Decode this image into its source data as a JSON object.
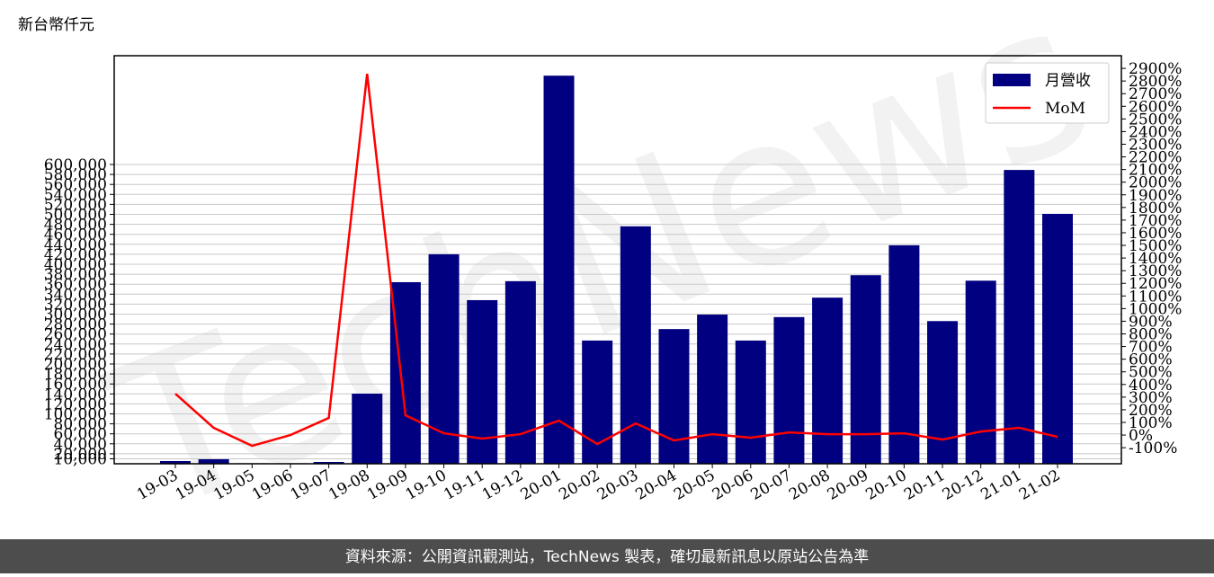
{
  "chart_data": {
    "type": "bar-line",
    "unit_label": "新台幣仟元",
    "watermark": "TechNews",
    "footer": "資料來源：公開資訊觀測站，TechNews 製表，確切最新訊息以原站公告為準",
    "categories": [
      "19-03",
      "19-04",
      "19-05",
      "19-06",
      "19-07",
      "19-08",
      "19-09",
      "19-10",
      "19-11",
      "19-12",
      "20-01",
      "20-02",
      "20-03",
      "20-04",
      "20-05",
      "20-06",
      "20-07",
      "20-08",
      "20-09",
      "20-10",
      "20-11",
      "20-12",
      "21-01",
      "21-02"
    ],
    "series": [
      {
        "name": "月營收",
        "type": "bar",
        "color": "#000080",
        "values": [
          5400,
          9000,
          1000,
          1000,
          3600,
          140500,
          364000,
          420000,
          328000,
          366000,
          778000,
          247000,
          476000,
          270000,
          299000,
          247000,
          294000,
          333000,
          378000,
          438000,
          286000,
          367000,
          589000,
          501000
        ]
      },
      {
        "name": "MoM",
        "type": "line",
        "axis": "y2",
        "color": "#ff0000",
        "values": [
          327,
          57,
          -85,
          0,
          135,
          2857,
          156,
          14,
          -28,
          7,
          114,
          -71,
          92,
          -43,
          7,
          -21,
          21,
          7,
          7,
          14,
          -36,
          28,
          57,
          -14
        ]
      }
    ],
    "ylim": [
      0,
      818000
    ],
    "yticks": [
      {
        "value": 10000,
        "label": "10,000"
      },
      {
        "value": 20000,
        "label": "20,000"
      },
      {
        "value": 40000,
        "label": "40,000"
      },
      {
        "value": 60000,
        "label": "60,000"
      },
      {
        "value": 80000,
        "label": "80,000"
      },
      {
        "value": 100000,
        "label": "100,000"
      },
      {
        "value": 120000,
        "label": "120,000"
      },
      {
        "value": 140000,
        "label": "140,000"
      },
      {
        "value": 160000,
        "label": "160,000"
      },
      {
        "value": 180000,
        "label": "180,000"
      },
      {
        "value": 200000,
        "label": "200,000"
      },
      {
        "value": 220000,
        "label": "220,000"
      },
      {
        "value": 240000,
        "label": "240,000"
      },
      {
        "value": 260000,
        "label": "260,000"
      },
      {
        "value": 280000,
        "label": "280,000"
      },
      {
        "value": 300000,
        "label": "300,000"
      },
      {
        "value": 320000,
        "label": "320,000"
      },
      {
        "value": 340000,
        "label": "340,000"
      },
      {
        "value": 360000,
        "label": "360,000"
      },
      {
        "value": 380000,
        "label": "380,000"
      },
      {
        "value": 400000,
        "label": "400,000"
      },
      {
        "value": 420000,
        "label": "420,000"
      },
      {
        "value": 440000,
        "label": "440,000"
      },
      {
        "value": 460000,
        "label": "460,000"
      },
      {
        "value": 480000,
        "label": "480,000"
      },
      {
        "value": 500000,
        "label": "500,000"
      },
      {
        "value": 520000,
        "label": "520,000"
      },
      {
        "value": 540000,
        "label": "540,000"
      },
      {
        "value": 560000,
        "label": "560,000"
      },
      {
        "value": 580000,
        "label": "580,000"
      },
      {
        "value": 600000,
        "label": "600,000"
      }
    ],
    "y2lim": [
      -227,
      3000
    ],
    "y2ticks": [
      {
        "value": -100,
        "label": "-100%"
      },
      {
        "value": 0,
        "label": "0%"
      },
      {
        "value": 100,
        "label": "100%"
      },
      {
        "value": 200,
        "label": "200%"
      },
      {
        "value": 300,
        "label": "300%"
      },
      {
        "value": 400,
        "label": "400%"
      },
      {
        "value": 500,
        "label": "500%"
      },
      {
        "value": 600,
        "label": "600%"
      },
      {
        "value": 700,
        "label": "700%"
      },
      {
        "value": 800,
        "label": "800%"
      },
      {
        "value": 900,
        "label": "900%"
      },
      {
        "value": 1000,
        "label": "1000%"
      },
      {
        "value": 1100,
        "label": "1100%"
      },
      {
        "value": 1200,
        "label": "1200%"
      },
      {
        "value": 1300,
        "label": "1300%"
      },
      {
        "value": 1400,
        "label": "1400%"
      },
      {
        "value": 1500,
        "label": "1500%"
      },
      {
        "value": 1600,
        "label": "1600%"
      },
      {
        "value": 1700,
        "label": "1700%"
      },
      {
        "value": 1800,
        "label": "1800%"
      },
      {
        "value": 1900,
        "label": "1900%"
      },
      {
        "value": 2000,
        "label": "2000%"
      },
      {
        "value": 2100,
        "label": "2100%"
      },
      {
        "value": 2200,
        "label": "2200%"
      },
      {
        "value": 2300,
        "label": "2300%"
      },
      {
        "value": 2400,
        "label": "2400%"
      },
      {
        "value": 2500,
        "label": "2500%"
      },
      {
        "value": 2600,
        "label": "2600%"
      },
      {
        "value": 2700,
        "label": "2700%"
      },
      {
        "value": 2800,
        "label": "2800%"
      },
      {
        "value": 2900,
        "label": "2900%"
      }
    ],
    "grid": true,
    "legend": "upper right"
  }
}
